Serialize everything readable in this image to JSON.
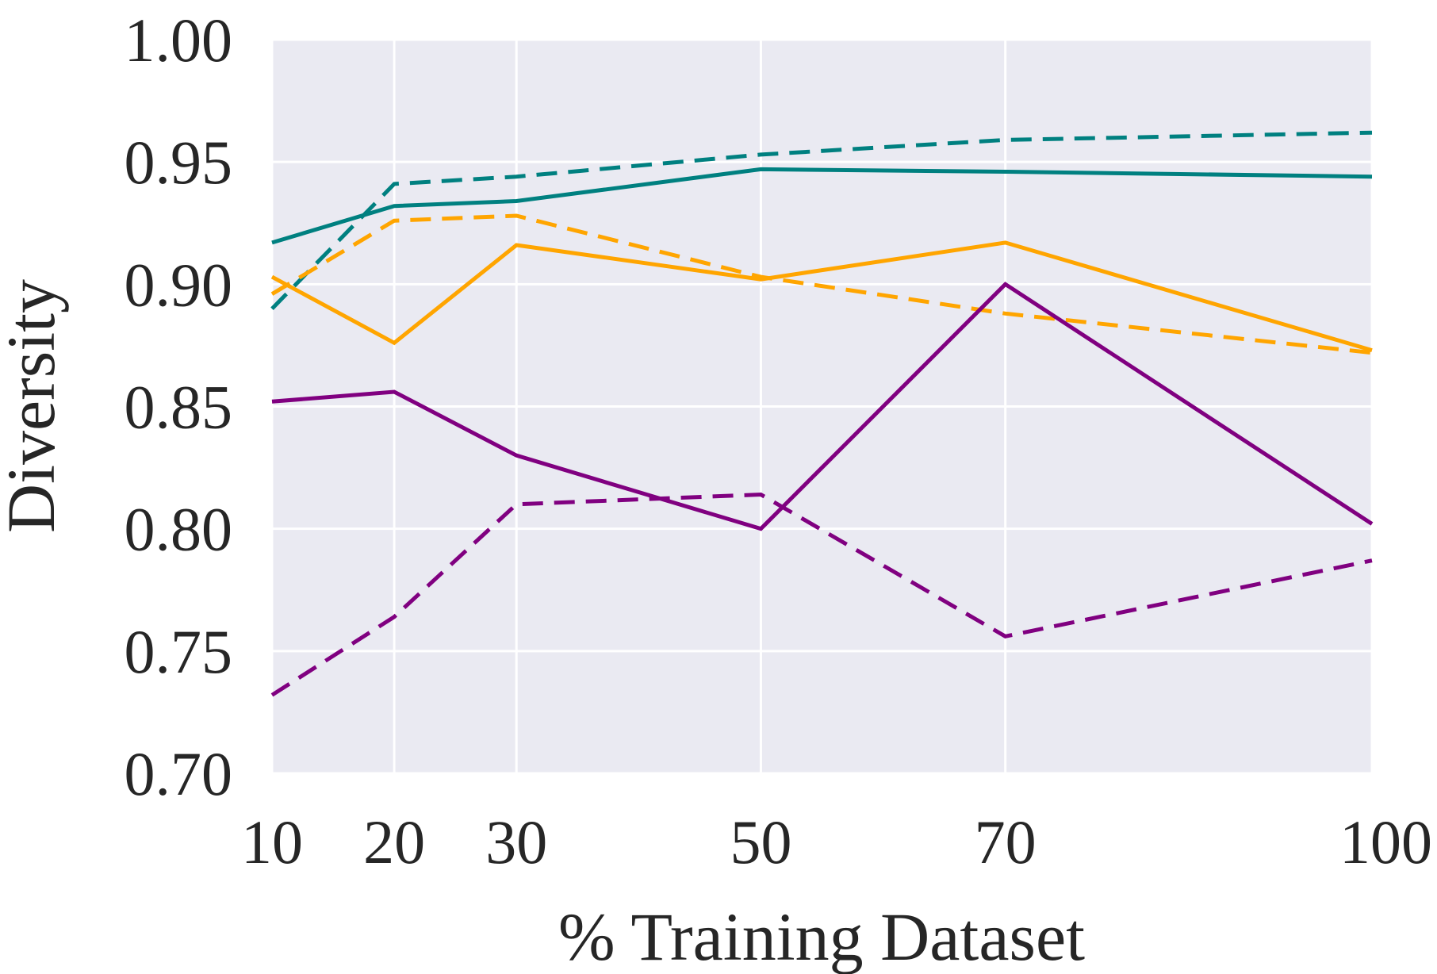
{
  "chart_data": {
    "type": "line",
    "title": "",
    "xlabel": "% Training Dataset",
    "ylabel": "Diversity",
    "x": [
      10,
      20,
      30,
      50,
      70,
      100
    ],
    "xlim": [
      10,
      100
    ],
    "ylim": [
      0.7,
      1.0
    ],
    "xticks": [
      "10",
      "20",
      "30",
      "50",
      "70",
      "100"
    ],
    "yticks": [
      "0.70",
      "0.75",
      "0.80",
      "0.85",
      "0.90",
      "0.95",
      "1.00"
    ],
    "grid": true,
    "legend": "none",
    "background": "#eaeaf2",
    "series": [
      {
        "color": "#008080",
        "dash": "solid",
        "values": [
          0.917,
          0.932,
          0.934,
          0.947,
          0.946,
          0.944
        ]
      },
      {
        "color": "#008080",
        "dash": "dashed",
        "values": [
          0.89,
          0.941,
          0.944,
          0.953,
          0.959,
          0.962
        ]
      },
      {
        "color": "#ffa500",
        "dash": "solid",
        "values": [
          0.903,
          0.876,
          0.916,
          0.902,
          0.917,
          0.873
        ]
      },
      {
        "color": "#ffa500",
        "dash": "dashed",
        "values": [
          0.896,
          0.926,
          0.928,
          0.903,
          0.888,
          0.872
        ]
      },
      {
        "color": "#800080",
        "dash": "solid",
        "values": [
          0.852,
          0.856,
          0.83,
          0.8,
          0.9,
          0.802
        ]
      },
      {
        "color": "#800080",
        "dash": "dashed",
        "values": [
          0.732,
          0.764,
          0.81,
          0.814,
          0.756,
          0.787
        ]
      }
    ]
  }
}
